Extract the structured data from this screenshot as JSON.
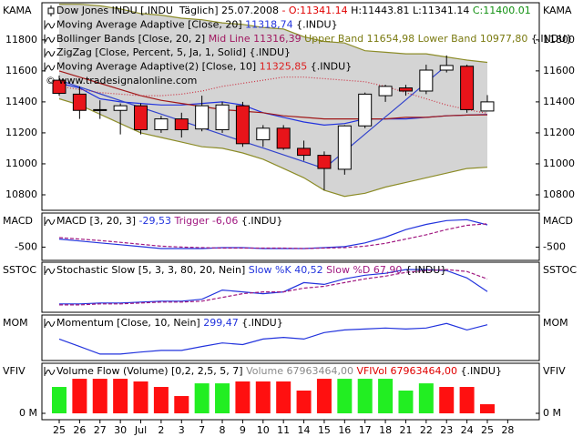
{
  "chart_data": [
    {
      "type": "candlestick",
      "label": "KAMA",
      "ylim": [
        10700,
        12040
      ],
      "yticks": [
        10800,
        11000,
        11200,
        11400,
        11600,
        11800
      ],
      "open": [
        11540,
        11450,
        11350,
        11345,
        11375,
        11220,
        11290,
        11225,
        11220,
        11375,
        11155,
        11230,
        11100,
        11055,
        10965,
        11245,
        11440,
        11490,
        11470,
        11605,
        11630,
        11341.14,
        null
      ],
      "high": [
        11570,
        11500,
        11410,
        11390,
        11390,
        11310,
        11330,
        11440,
        11400,
        11400,
        11250,
        11250,
        11150,
        11080,
        11250,
        11460,
        11510,
        11510,
        11640,
        11700,
        11640,
        11443.81,
        null
      ],
      "low": [
        11440,
        11290,
        11290,
        11190,
        11190,
        11200,
        11170,
        11210,
        11200,
        11110,
        11110,
        11090,
        11020,
        10830,
        10930,
        11230,
        11400,
        11440,
        11450,
        11590,
        11330,
        11341.14,
        null
      ],
      "close": [
        11455,
        11345,
        11345,
        11375,
        11220,
        11290,
        11220,
        11375,
        11380,
        11130,
        11230,
        11100,
        11055,
        10970,
        11245,
        11450,
        11500,
        11470,
        11605,
        11635,
        11350,
        11400.01,
        null
      ],
      "up_color": "#ffffff",
      "down_color": "#e8141a",
      "band": {
        "fill": "#d4d4d4",
        "color": "#8c8c28",
        "upper": [
          12030,
          12030,
          12020,
          12000,
          11970,
          11960,
          11940,
          11930,
          11910,
          11900,
          11880,
          11870,
          11820,
          11790,
          11780,
          11730,
          11720,
          11710,
          11710,
          11690,
          11670,
          11654.98,
          null
        ],
        "lower": [
          11420,
          11380,
          11320,
          11260,
          11200,
          11170,
          11140,
          11110,
          11100,
          11070,
          11030,
          10970,
          10910,
          10830,
          10790,
          10810,
          10850,
          10880,
          10910,
          10940,
          10970,
          10977.8,
          null
        ]
      },
      "series": [
        {
          "color": "#2233dd",
          "values": [
            11520,
            11490,
            11420,
            11400,
            11390,
            11380,
            11380,
            11390,
            11400,
            11380,
            11330,
            11300,
            11270,
            11250,
            11260,
            11290,
            11290,
            11290,
            11300,
            11310,
            11315,
            11318.74,
            null
          ]
        },
        {
          "color": "#a01818",
          "values": [
            11600,
            11560,
            11520,
            11480,
            11440,
            11410,
            11390,
            11370,
            11350,
            11340,
            11330,
            11310,
            11300,
            11290,
            11290,
            11290,
            11290,
            11300,
            11300,
            11310,
            11315,
            11316.39,
            null
          ]
        },
        {
          "color": "#3344cc",
          "values": [
            11540,
            11496,
            11452,
            11408,
            11365,
            11321,
            11277,
            11233,
            11189,
            11145,
            11102,
            11058,
            11014,
            10970,
            11081,
            11192,
            11303,
            11413,
            11524,
            11635,
            null,
            null,
            null
          ]
        },
        {
          "color": "#cc3344",
          "dash": "1,2",
          "values": [
            11500,
            11480,
            11460,
            11450,
            11440,
            11440,
            11450,
            11470,
            11500,
            11520,
            11540,
            11560,
            11560,
            11550,
            11540,
            11530,
            11500,
            11460,
            11420,
            11380,
            11350,
            11325.85,
            null
          ]
        }
      ],
      "legend": [
        [
          {
            "text": "Dow Jones INDU [.INDU  Täglich] 25.07.2008 ",
            "color": "#000000"
          },
          {
            "text": "- O:11341.14",
            "color": "#e00000"
          },
          {
            "text": " H:11443.81 L:11341.14 ",
            "color": "#000000"
          },
          {
            "text": "C:11400.01",
            "color": "#109010"
          }
        ],
        [
          {
            "text": "Moving Average Adaptive [Close, 20] ",
            "color": "#000000"
          },
          {
            "text": "11318,74",
            "color": "#2233dd"
          },
          {
            "text": " {.INDU}",
            "color": "#000000"
          }
        ],
        [
          {
            "text": "Bollinger Bands [Close, 20, 2] ",
            "color": "#000000"
          },
          {
            "text": "Mid Line 11316,39",
            "color": "#a01860"
          },
          {
            "text": " Upper Band 11654,98 Lower Band 10977,80",
            "color": "#7a7a10"
          },
          {
            "text": " {.INDU}",
            "color": "#000000"
          }
        ],
        [
          {
            "text": "ZigZag [Close, Percent, 5, Ja, 1, Solid] {.INDU}",
            "color": "#000000"
          }
        ],
        [
          {
            "text": "Moving Average Adaptive(2) [Close, 10] ",
            "color": "#000000"
          },
          {
            "text": "11325,85",
            "color": "#dd2020"
          },
          {
            "text": " {.INDU}",
            "color": "#000000"
          }
        ]
      ],
      "watermark": "© www.tradesignalonline.com"
    },
    {
      "type": "line",
      "label": "MACD",
      "ylim": [
        -780,
        220
      ],
      "yticks": [
        -500
      ],
      "series": [
        {
          "color": "#2233dd",
          "values": [
            -330,
            -370,
            -410,
            -450,
            -490,
            -530,
            -530,
            -530,
            -510,
            -510,
            -530,
            -530,
            -530,
            -510,
            -490,
            -410,
            -290,
            -130,
            -20,
            60,
            80,
            -29.53,
            null
          ]
        },
        {
          "color": "#a01880",
          "dash": "4,2",
          "values": [
            -300,
            -330,
            -360,
            -400,
            -440,
            -480,
            -500,
            -510,
            -520,
            -520,
            -520,
            -520,
            -530,
            -520,
            -510,
            -480,
            -420,
            -330,
            -240,
            -130,
            -40,
            -6.06,
            null
          ]
        }
      ],
      "legend": [
        [
          {
            "text": "MACD [3, 20, 3] ",
            "color": "#000000"
          },
          {
            "text": "-29,53",
            "color": "#2233dd"
          },
          {
            "text": " Trigger -6,06",
            "color": "#a01880"
          },
          {
            "text": " {.INDU}",
            "color": "#000000"
          }
        ]
      ]
    },
    {
      "type": "line",
      "label": "SSTOC",
      "ylim": [
        -4,
        104
      ],
      "series": [
        {
          "color": "#2233dd",
          "values": [
            14,
            14,
            16,
            16,
            18,
            20,
            20,
            24,
            44,
            40,
            36,
            40,
            60,
            56,
            68,
            76,
            80,
            88,
            88,
            86,
            70,
            40.52,
            null
          ]
        },
        {
          "color": "#a01880",
          "dash": "4,2",
          "values": [
            12,
            12,
            14,
            14,
            16,
            18,
            18,
            20,
            28,
            36,
            40,
            40,
            48,
            52,
            60,
            68,
            74,
            82,
            86,
            88,
            84,
            67.9,
            null
          ]
        }
      ],
      "legend": [
        [
          {
            "text": "Stochastic Slow [5, 3, 3, 80, 20, Nein] ",
            "color": "#000000"
          },
          {
            "text": "Slow %K 40,52",
            "color": "#2233dd"
          },
          {
            "text": " Slow %D 67,90",
            "color": "#a01880"
          },
          {
            "text": " {.INDU}",
            "color": "#000000"
          }
        ]
      ]
    },
    {
      "type": "line",
      "label": "MOM",
      "ylim": [
        -800,
        600
      ],
      "series": [
        {
          "color": "#2233dd",
          "values": [
            -140,
            -370,
            -600,
            -600,
            -540,
            -490,
            -490,
            -370,
            -260,
            -310,
            -140,
            -90,
            -140,
            60,
            140,
            170,
            200,
            170,
            200,
            340,
            140,
            299.47,
            null
          ]
        }
      ],
      "legend": [
        [
          {
            "text": "Momentum [Close, 10, Nein] ",
            "color": "#000000"
          },
          {
            "text": "299,47",
            "color": "#2233dd"
          },
          {
            "text": " {.INDU}",
            "color": "#000000"
          }
        ]
      ]
    },
    {
      "type": "bar",
      "label": "VFIV",
      "ylim": [
        -47600000,
        374000000
      ],
      "yticks": [
        {
          "value": 0,
          "label": "0 M"
        }
      ],
      "categories": [
        "25",
        "26",
        "27",
        "30",
        "Jul",
        "2",
        "3",
        "7",
        "8",
        "9",
        "10",
        "11",
        "14",
        "15",
        "16",
        "17",
        "18",
        "21",
        "22",
        "23",
        "24",
        "25",
        "28"
      ],
      "values": [
        197000000,
        258000000,
        258000000,
        258000000,
        238000000,
        197000000,
        129000000,
        224000000,
        224000000,
        238000000,
        238000000,
        238000000,
        170000000,
        258000000,
        258000000,
        258000000,
        258000000,
        170000000,
        224000000,
        197000000,
        197000000,
        67963464,
        null
      ],
      "colors": [
        "#22ee22",
        "#ff1010",
        "#ff1010",
        "#ff1010",
        "#ff1010",
        "#ff1010",
        "#ff1010",
        "#22ee22",
        "#22ee22",
        "#ff1010",
        "#ff1010",
        "#ff1010",
        "#ff1010",
        "#ff1010",
        "#22ee22",
        "#22ee22",
        "#22ee22",
        "#22ee22",
        "#22ee22",
        "#ff1010",
        "#ff1010",
        "#ff1010",
        null
      ],
      "legend": [
        [
          {
            "text": "Volume Flow (Volume) [0,2, 2,5, 5, 7] ",
            "color": "#000000"
          },
          {
            "text": "Volume 67963464,00",
            "color": "#8a8a8a"
          },
          {
            "text": " VFIVol 67963464,00",
            "color": "#e00000"
          },
          {
            "text": " {.INDU}",
            "color": "#000000"
          }
        ]
      ]
    }
  ]
}
